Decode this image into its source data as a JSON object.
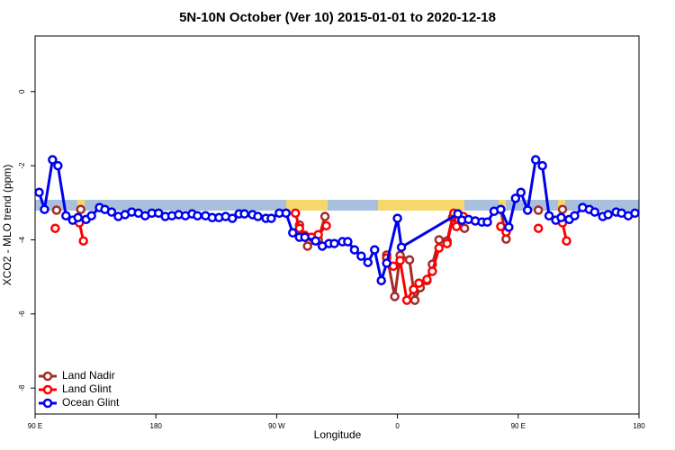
{
  "chart_data": {
    "type": "line",
    "title": "5N-10N October (Ver 10)   2015-01-01 to 2020-12-18",
    "x_label": "Longitude",
    "y_label": "XCO2 - MLO trend (ppm)",
    "xlim": [
      90,
      540
    ],
    "ylim": [
      -8.7,
      1.5
    ],
    "xticks": [
      {
        "value": 90,
        "label": "90 E"
      },
      {
        "value": 180,
        "label": "180"
      },
      {
        "value": 270,
        "label": "90 W"
      },
      {
        "value": 360,
        "label": "0"
      },
      {
        "value": 450,
        "label": "90 E"
      },
      {
        "value": 540,
        "label": "180"
      }
    ],
    "yticks": [
      0,
      -2,
      -4,
      -6,
      -8
    ],
    "legend": "bottom-left",
    "series": [
      {
        "name": "Land Nadir",
        "color": "#a52a2a",
        "x": [
          106,
          null,
          124,
          null,
          287,
          293,
          301,
          306,
          null,
          352,
          358,
          362,
          369,
          373,
          377,
          382,
          386,
          391,
          397,
          401,
          405,
          410,
          null,
          437,
          441,
          null,
          465,
          null,
          483
        ],
        "values": [
          -3.2,
          null,
          -3.18,
          null,
          -3.6,
          -4.17,
          -4.0,
          -3.37,
          null,
          -4.41,
          -5.53,
          -4.42,
          -4.54,
          -5.63,
          -5.29,
          -5.1,
          -4.66,
          -4.0,
          -4.03,
          -3.4,
          -3.47,
          -3.69,
          null,
          -3.18,
          -3.98,
          null,
          -3.2,
          null,
          -3.18
        ]
      },
      {
        "name": "Land Glint",
        "color": "#ff0000",
        "x": [
          105,
          null,
          123,
          126,
          null,
          284,
          287,
          291,
          296,
          301,
          307,
          null,
          352,
          357,
          362,
          367,
          372,
          376,
          382,
          386,
          391,
          397,
          402,
          404,
          409,
          null,
          437,
          441,
          null,
          465,
          null,
          483,
          486
        ],
        "values": [
          -3.69,
          null,
          -3.54,
          -4.03,
          null,
          -3.28,
          -3.69,
          -3.88,
          -3.93,
          -3.86,
          -3.62,
          null,
          -4.49,
          -4.71,
          -4.56,
          -5.63,
          -5.34,
          -5.17,
          -5.07,
          -4.85,
          -4.22,
          -4.1,
          -3.28,
          -3.64,
          -3.37,
          null,
          -3.64,
          -3.79,
          null,
          -3.69,
          null,
          -3.54,
          -4.03
        ]
      },
      {
        "name": "Ocean Glint",
        "color": "#0000ee",
        "x": [
          93,
          97,
          103,
          107,
          113,
          118,
          122,
          128,
          132,
          138,
          142,
          147,
          152,
          157,
          162,
          167,
          172,
          177,
          182,
          187,
          192,
          197,
          202,
          207,
          211,
          217,
          222,
          227,
          232,
          237,
          242,
          246,
          252,
          256,
          262,
          266,
          272,
          277,
          282,
          287,
          291,
          299,
          304,
          309,
          313,
          319,
          323,
          328,
          333,
          338,
          343,
          348,
          352,
          360,
          363,
          405,
          408,
          413,
          418,
          423,
          427,
          432,
          437,
          443,
          448,
          452,
          457,
          463,
          468,
          473,
          478,
          482,
          488,
          492,
          498,
          503,
          507,
          513,
          517,
          523,
          527,
          532,
          537
        ],
        "values": [
          -2.72,
          -3.18,
          -1.84,
          -2.0,
          -3.35,
          -3.47,
          -3.4,
          -3.45,
          -3.35,
          -3.13,
          -3.18,
          -3.25,
          -3.37,
          -3.32,
          -3.25,
          -3.28,
          -3.35,
          -3.28,
          -3.28,
          -3.37,
          -3.35,
          -3.32,
          -3.35,
          -3.3,
          -3.35,
          -3.35,
          -3.4,
          -3.4,
          -3.37,
          -3.42,
          -3.3,
          -3.3,
          -3.32,
          -3.37,
          -3.42,
          -3.42,
          -3.28,
          -3.28,
          -3.81,
          -3.93,
          -3.93,
          -4.03,
          -4.17,
          -4.1,
          -4.1,
          -4.05,
          -4.05,
          -4.27,
          -4.44,
          -4.61,
          -4.27,
          -5.1,
          -4.63,
          -3.42,
          -4.2,
          -3.3,
          -3.47,
          -3.45,
          -3.49,
          -3.52,
          -3.52,
          -3.23,
          -3.18,
          -3.66,
          -2.88,
          -2.72,
          -3.2,
          -1.84,
          -2.0,
          -3.35,
          -3.47,
          -3.4,
          -3.45,
          -3.35,
          -3.13,
          -3.18,
          -3.25,
          -3.37,
          -3.32,
          -3.25,
          -3.28,
          -3.35,
          -3.28
        ]
      }
    ]
  }
}
